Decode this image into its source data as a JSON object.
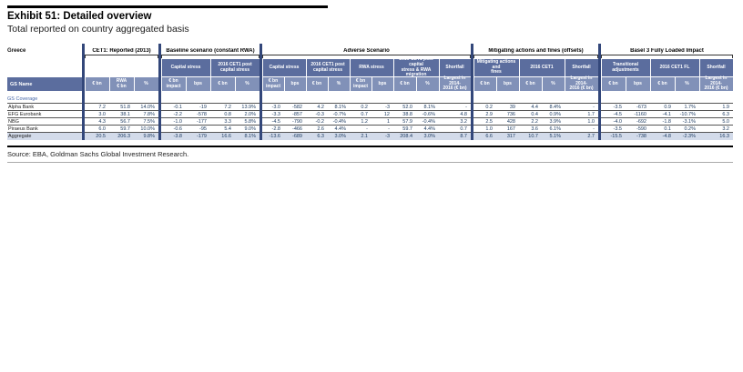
{
  "exhibit": {
    "title": "Exhibit 51: Detailed overview",
    "subtitle": "Total reported on country aggregated basis",
    "source": "Source: EBA, Goldman Sachs Global Investment Research."
  },
  "colors": {
    "group_header_bg": "#5b6d9e",
    "column_header_bg": "#8191b8",
    "aggregate_row_bg": "#d3dbea",
    "divider_bar": "#33477a",
    "data_text": "#17365d",
    "coverage_text": "#4466a8"
  },
  "table": {
    "region_label": "Greece",
    "name_header": "GS Name",
    "coverage_label": "GS Coverage",
    "sections": [
      {
        "title": "CET1: Reported (2013)",
        "groups": [
          {
            "label": "",
            "cols": [
              "€ bn",
              "RWA\n€ bn",
              "%"
            ]
          }
        ]
      },
      {
        "title": "Baseline scenario (constant RWA)",
        "groups": [
          {
            "label": "Capital stress",
            "cols": [
              "€ bn\nimpact",
              "bps"
            ]
          },
          {
            "label": "2016 CET1 post\ncapital stress",
            "cols": [
              "€ bn",
              "%"
            ]
          }
        ]
      },
      {
        "title": "Adverse Scenario",
        "groups": [
          {
            "label": "Capital stress",
            "cols": [
              "€ bn\nimpact",
              "bps"
            ]
          },
          {
            "label": "2016 CET1 post\ncapital stress",
            "cols": [
              "€ bn",
              "%"
            ]
          },
          {
            "label": "RWA stress",
            "cols": [
              "€ bn\nimpact",
              "bps"
            ]
          },
          {
            "label": "2016 CET1 post capital\nstress & RWA migration",
            "cols": [
              "€ bn",
              "%"
            ]
          },
          {
            "label": "Shortfall",
            "cols": [
              "Largest in 2014-\n2016 (€ bn)"
            ]
          }
        ]
      },
      {
        "title": "Mitigating actions and fines (offsets)",
        "groups": [
          {
            "label": "Mitigating actions and\nfines",
            "cols": [
              "€ bn",
              "bps"
            ]
          },
          {
            "label": "2016 CET1",
            "cols": [
              "€ bn",
              "%"
            ]
          },
          {
            "label": "Shortfall",
            "cols": [
              "Largest in 2014-\n2016 (€ bn)"
            ]
          }
        ]
      },
      {
        "title": "Basel 3 Fully Loaded Impact",
        "groups": [
          {
            "label": "Transitional\nadjustments",
            "cols": [
              "€ bn",
              "bps"
            ]
          },
          {
            "label": "2016 CET1 FL",
            "cols": [
              "€ bn",
              "%"
            ]
          },
          {
            "label": "Shortfall",
            "cols": [
              "Largest in 2014-\n2016 (€ bn)"
            ]
          }
        ]
      }
    ],
    "rows": [
      {
        "name": "Alpha Bank",
        "values": [
          [
            "7.2",
            "51.8",
            "14.0%"
          ],
          [
            "-0.1",
            "-19",
            "7.2",
            "13.9%"
          ],
          [
            "-3.0",
            "-582",
            "4.2",
            "8.1%",
            "0.2",
            "-3",
            "52.0",
            "8.1%",
            "-"
          ],
          [
            "0.2",
            "39",
            "4.4",
            "8.4%",
            "-"
          ],
          [
            "-3.5",
            "-673",
            "0.9",
            "1.7%",
            "1.9"
          ]
        ]
      },
      {
        "name": "EFG Eurobank",
        "values": [
          [
            "3.0",
            "38.1",
            "7.8%"
          ],
          [
            "-2.2",
            "-578",
            "0.8",
            "2.0%"
          ],
          [
            "-3.3",
            "-857",
            "-0.3",
            "-0.7%",
            "0.7",
            "12",
            "38.8",
            "-0.6%",
            "4.8"
          ],
          [
            "2.9",
            "736",
            "0.4",
            "0.9%",
            "1.7"
          ],
          [
            "-4.5",
            "-1160",
            "-4.1",
            "-10.7%",
            "6.3"
          ]
        ]
      },
      {
        "name": "NBG",
        "values": [
          [
            "4.3",
            "56.7",
            "7.5%"
          ],
          [
            "-1.0",
            "-177",
            "3.3",
            "5.8%"
          ],
          [
            "-4.5",
            "-790",
            "-0.2",
            "-0.4%",
            "1.2",
            "1",
            "57.9",
            "-0.4%",
            "3.2"
          ],
          [
            "2.5",
            "428",
            "2.2",
            "3.9%",
            "1.0"
          ],
          [
            "-4.0",
            "-692",
            "-1.8",
            "-3.1%",
            "5.0"
          ]
        ]
      },
      {
        "name": "Piraeus Bank",
        "values": [
          [
            "6.0",
            "59.7",
            "10.0%"
          ],
          [
            "-0.6",
            "-95",
            "5.4",
            "9.0%"
          ],
          [
            "-2.8",
            "-466",
            "2.6",
            "4.4%",
            "-",
            "-",
            "59.7",
            "4.4%",
            "0.7"
          ],
          [
            "1.0",
            "167",
            "3.6",
            "6.1%",
            "-"
          ],
          [
            "-3.5",
            "-590",
            "0.1",
            "0.2%",
            "3.2"
          ]
        ]
      },
      {
        "name": "Aggregate",
        "values": [
          [
            "20.5",
            "206.3",
            "9.8%"
          ],
          [
            "-3.8",
            "-179",
            "16.6",
            "8.1%"
          ],
          [
            "-13.6",
            "-689",
            "6.3",
            "3.0%",
            "2.1",
            "-3",
            "208.4",
            "3.0%",
            "8.7"
          ],
          [
            "6.6",
            "317",
            "10.7",
            "5.1%",
            "2.7"
          ],
          [
            "-15.5",
            "-738",
            "-4.8",
            "-2.3%",
            "16.3"
          ]
        ]
      }
    ]
  }
}
